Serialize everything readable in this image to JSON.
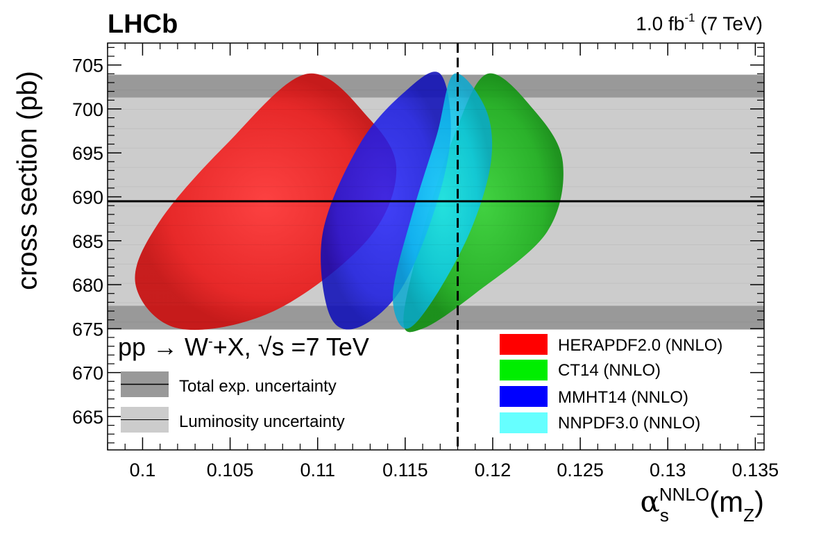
{
  "header": {
    "experiment": "LHCb",
    "luminosity_prefix": "1.0 fb",
    "luminosity_exponent": "-1",
    "luminosity_suffix": "(7 TeV)"
  },
  "axes": {
    "ylabel": "cross section (pb)",
    "xlabel_symbol": "α",
    "xlabel_subscript": "s",
    "xlabel_superscript": "NNLO",
    "xlabel_argument": "(m",
    "xlabel_argument_subscript": "Z",
    "xlabel_close": ")"
  },
  "process": {
    "prefix": "pp → W",
    "charge": "-",
    "suffix": "+X,  √s =7 TeV"
  },
  "chart_data": {
    "type": "scatter",
    "title": "",
    "xlabel": "αs NNLO (mZ)",
    "ylabel": "cross section (pb)",
    "xlim": [
      0.098,
      0.1355
    ],
    "ylim": [
      661.2,
      707.5
    ],
    "xticks": [
      0.1,
      0.105,
      0.11,
      0.115,
      0.12,
      0.125,
      0.13,
      0.135
    ],
    "xtick_labels": [
      "0.1",
      "0.105",
      "0.11",
      "0.115",
      "0.12",
      "0.125",
      "0.13",
      "0.135"
    ],
    "yticks": [
      665,
      670,
      675,
      680,
      685,
      690,
      695,
      700,
      705
    ],
    "ytick_labels": [
      "665",
      "670",
      "675",
      "680",
      "685",
      "690",
      "695",
      "700",
      "705"
    ],
    "measurement": {
      "central": 689.5,
      "luminosity_band": [
        677.6,
        701.3
      ],
      "total_exp_band": [
        674.9,
        703.9
      ]
    },
    "reference_alpha_s": 0.118,
    "series": [
      {
        "name": "HERAPDF2.0 (NNLO)",
        "color": "#ff0000",
        "ellipse": [
          [
            0.1094,
            704.0
          ],
          [
            0.1129,
            699.0
          ],
          [
            0.1145,
            693.0
          ],
          [
            0.1128,
            685.0
          ],
          [
            0.1075,
            677.0
          ],
          [
            0.1021,
            675.0
          ],
          [
            0.0996,
            680.0
          ],
          [
            0.1009,
            687.0
          ],
          [
            0.1048,
            696.0
          ]
        ]
      },
      {
        "name": "CT14 (NNLO)",
        "color": "#00cc00",
        "ellipse": [
          [
            0.1197,
            704.0
          ],
          [
            0.1223,
            700.0
          ],
          [
            0.124,
            694.0
          ],
          [
            0.1231,
            686.0
          ],
          [
            0.119,
            679.0
          ],
          [
            0.116,
            675.0
          ],
          [
            0.1149,
            676.0
          ],
          [
            0.116,
            686.0
          ],
          [
            0.1178,
            697.0
          ]
        ]
      },
      {
        "name": "MMHT14 (NNLO)",
        "color": "#0000ff",
        "ellipse": [
          [
            0.117,
            704.0
          ],
          [
            0.1176,
            697.0
          ],
          [
            0.1166,
            688.0
          ],
          [
            0.1146,
            679.0
          ],
          [
            0.1121,
            675.0
          ],
          [
            0.1106,
            677.0
          ],
          [
            0.1103,
            686.0
          ],
          [
            0.1124,
            696.0
          ],
          [
            0.115,
            702.0
          ]
        ]
      },
      {
        "name": "NNPDF3.0 (NNLO)",
        "color": "#00ffff",
        "ellipse": [
          [
            0.1178,
            704.0
          ],
          [
            0.1196,
            700.0
          ],
          [
            0.1199,
            694.0
          ],
          [
            0.1187,
            686.0
          ],
          [
            0.1165,
            678.0
          ],
          [
            0.115,
            675.0
          ],
          [
            0.1143,
            679.0
          ],
          [
            0.1154,
            688.0
          ],
          [
            0.1168,
            697.0
          ]
        ]
      }
    ],
    "legend": {
      "placement": "bottom-right",
      "entries": [
        "HERAPDF2.0 (NNLO)",
        "CT14 (NNLO)",
        "MMHT14 (NNLO)",
        "NNPDF3.0 (NNLO)"
      ],
      "colors": [
        "#ff0000",
        "#00ee00",
        "#0000ff",
        "#66ffff"
      ]
    },
    "band_legend": {
      "placement": "bottom-left",
      "entries": [
        "Total exp. uncertainty",
        "Luminosity uncertainty"
      ],
      "colors": [
        "#999999",
        "#cccccc"
      ]
    }
  }
}
